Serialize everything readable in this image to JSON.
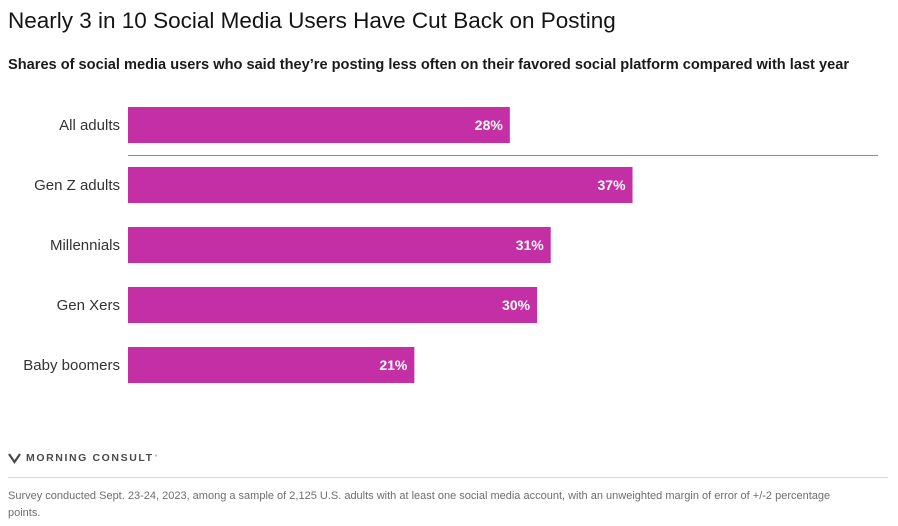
{
  "title": "Nearly 3 in 10 Social Media Users Have Cut Back on Posting",
  "subtitle": "Shares of social media users who said they’re posting less often on their favored social platform compared with last year",
  "brand": {
    "name": "MORNING CONSULT",
    "trademark": "°",
    "logo_icon": "morning-consult-logo-icon"
  },
  "footnote": "Survey conducted Sept. 23-24, 2023, among a sample of 2,125 U.S. adults with at least one social media account, with an unweighted margin of error of +/-2 percentage points.",
  "colors": {
    "bar": "#c42fa6",
    "divider": "#8c8c8c"
  },
  "chart_data": {
    "type": "bar",
    "orientation": "horizontal",
    "title": "Nearly 3 in 10 Social Media Users Have Cut Back on Posting",
    "subtitle": "Shares of social media users who said they’re posting less often on their favored social platform compared with last year",
    "xlabel": "",
    "ylabel": "",
    "categories": [
      "All adults",
      "Gen Z adults",
      "Millennials",
      "Gen Xers",
      "Baby boomers"
    ],
    "values": [
      28,
      37,
      31,
      30,
      21
    ],
    "value_labels": [
      "28%",
      "37%",
      "31%",
      "30%",
      "21%"
    ],
    "unit": "%",
    "xlim": [
      0,
      55
    ],
    "grid": false,
    "legend": "none",
    "divider_after_category": "All adults"
  }
}
